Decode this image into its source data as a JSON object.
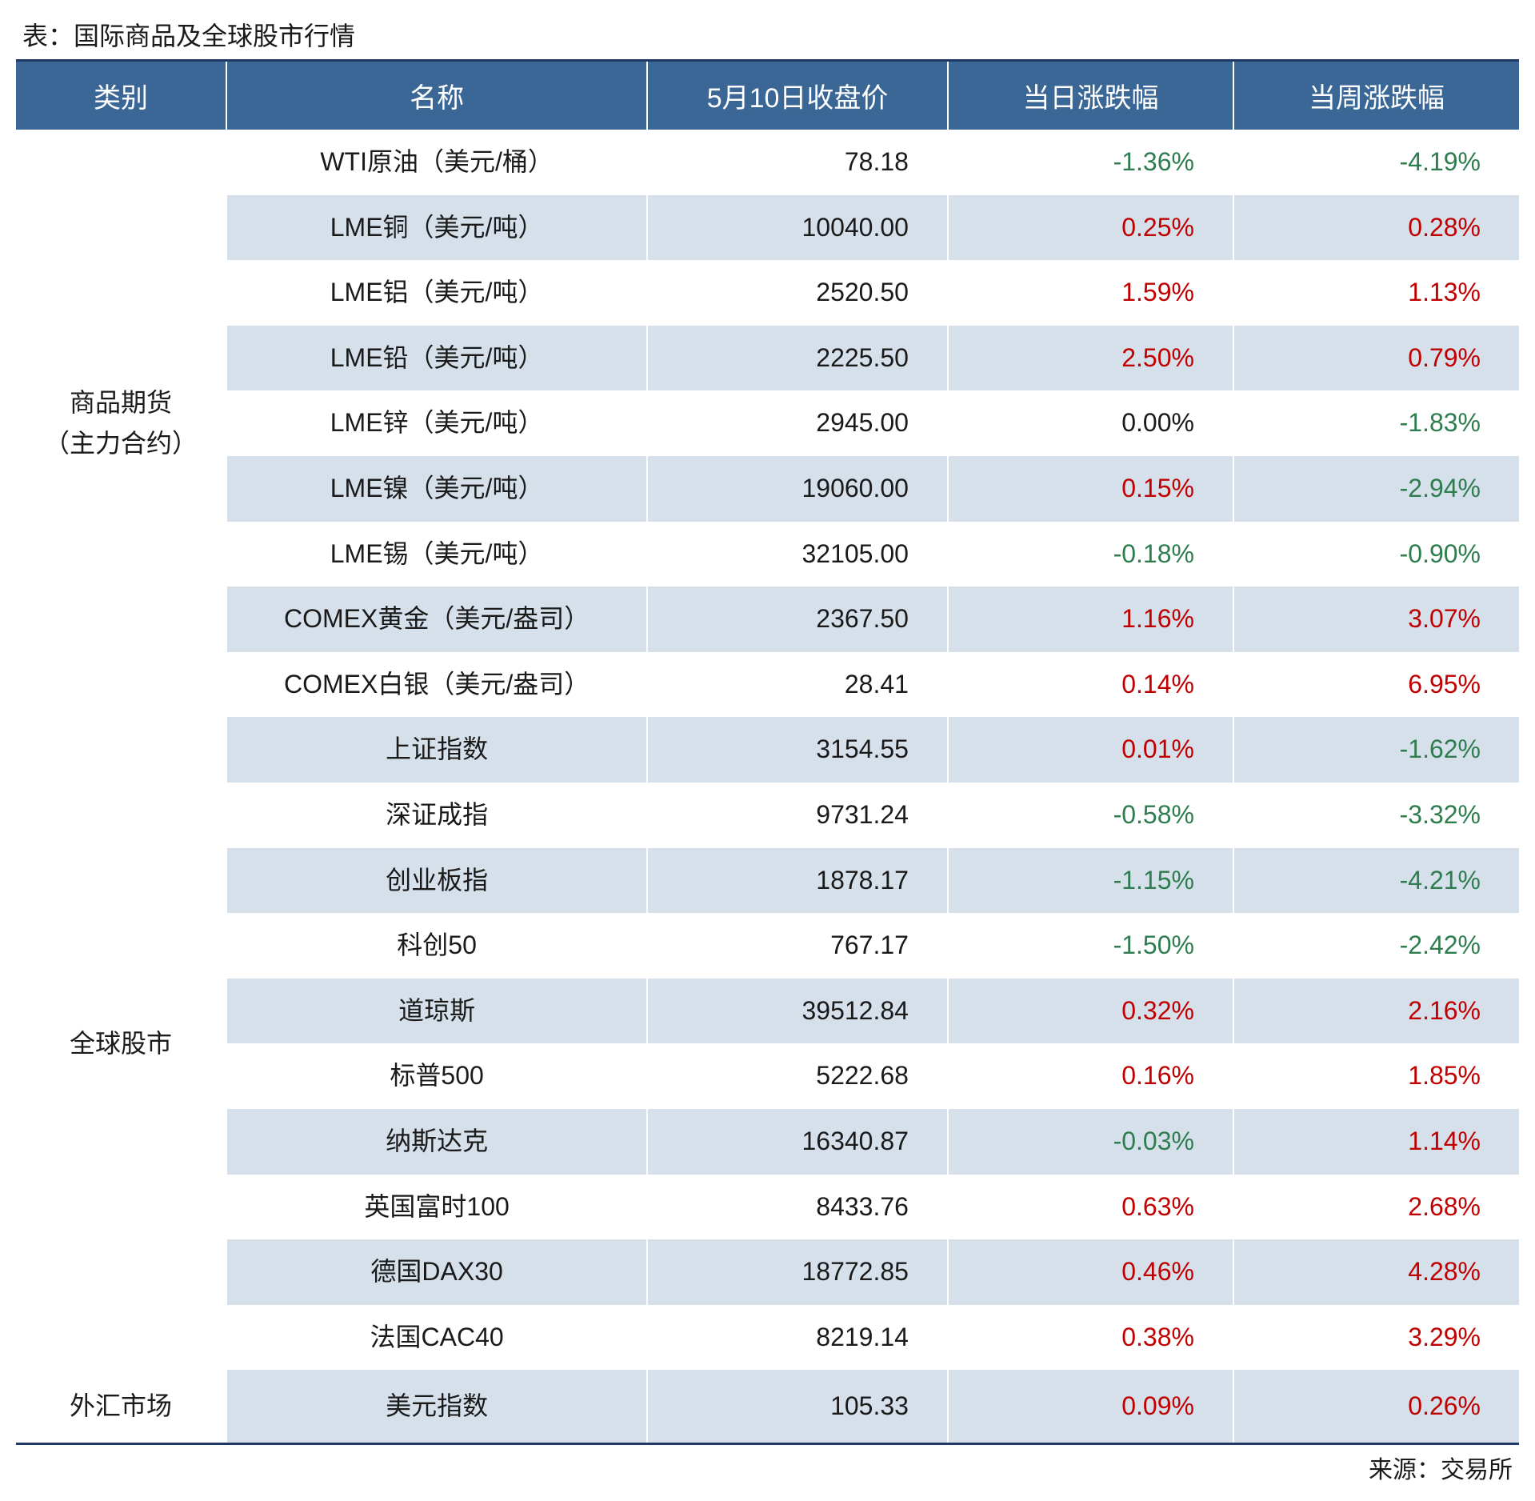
{
  "title": "表：国际商品及全球股市行情",
  "source": "来源：交易所",
  "colors": {
    "header_bg": "#3b6796",
    "header_text": "#ffffff",
    "row_alt_bg": "#d6e0eb",
    "row_bg": "#ffffff",
    "positive": "#c00000",
    "negative": "#2e7d4f",
    "border": "#1f3864"
  },
  "columns": [
    "类别",
    "名称",
    "5月10日收盘价",
    "当日涨跌幅",
    "当周涨跌幅"
  ],
  "groups": [
    {
      "category": "商品期货\n（主力合约）",
      "rows": [
        {
          "name": "WTI原油（美元/桶）",
          "close": "78.18",
          "day": "-1.36%",
          "week": "-4.19%"
        },
        {
          "name": "LME铜（美元/吨）",
          "close": "10040.00",
          "day": "0.25%",
          "week": "0.28%"
        },
        {
          "name": "LME铝（美元/吨）",
          "close": "2520.50",
          "day": "1.59%",
          "week": "1.13%"
        },
        {
          "name": "LME铅（美元/吨）",
          "close": "2225.50",
          "day": "2.50%",
          "week": "0.79%"
        },
        {
          "name": "LME锌（美元/吨）",
          "close": "2945.00",
          "day": "0.00%",
          "week": "-1.83%"
        },
        {
          "name": "LME镍（美元/吨）",
          "close": "19060.00",
          "day": "0.15%",
          "week": "-2.94%"
        },
        {
          "name": "LME锡（美元/吨）",
          "close": "32105.00",
          "day": "-0.18%",
          "week": "-0.90%"
        },
        {
          "name": "COMEX黄金（美元/盎司）",
          "close": "2367.50",
          "day": "1.16%",
          "week": "3.07%"
        },
        {
          "name": "COMEX白银（美元/盎司）",
          "close": "28.41",
          "day": "0.14%",
          "week": "6.95%"
        }
      ]
    },
    {
      "category": "全球股市",
      "rows": [
        {
          "name": "上证指数",
          "close": "3154.55",
          "day": "0.01%",
          "week": "-1.62%"
        },
        {
          "name": "深证成指",
          "close": "9731.24",
          "day": "-0.58%",
          "week": "-3.32%"
        },
        {
          "name": "创业板指",
          "close": "1878.17",
          "day": "-1.15%",
          "week": "-4.21%"
        },
        {
          "name": "科创50",
          "close": "767.17",
          "day": "-1.50%",
          "week": "-2.42%"
        },
        {
          "name": "道琼斯",
          "close": "39512.84",
          "day": "0.32%",
          "week": "2.16%"
        },
        {
          "name": "标普500",
          "close": "5222.68",
          "day": "0.16%",
          "week": "1.85%"
        },
        {
          "name": "纳斯达克",
          "close": "16340.87",
          "day": "-0.03%",
          "week": "1.14%"
        },
        {
          "name": "英国富时100",
          "close": "8433.76",
          "day": "0.63%",
          "week": "2.68%"
        },
        {
          "name": "德国DAX30",
          "close": "18772.85",
          "day": "0.46%",
          "week": "4.28%"
        },
        {
          "name": "法国CAC40",
          "close": "8219.14",
          "day": "0.38%",
          "week": "3.29%"
        }
      ]
    },
    {
      "category": "外汇市场",
      "rows": [
        {
          "name": "美元指数",
          "close": "105.33",
          "day": "0.09%",
          "week": "0.26%"
        }
      ]
    }
  ]
}
